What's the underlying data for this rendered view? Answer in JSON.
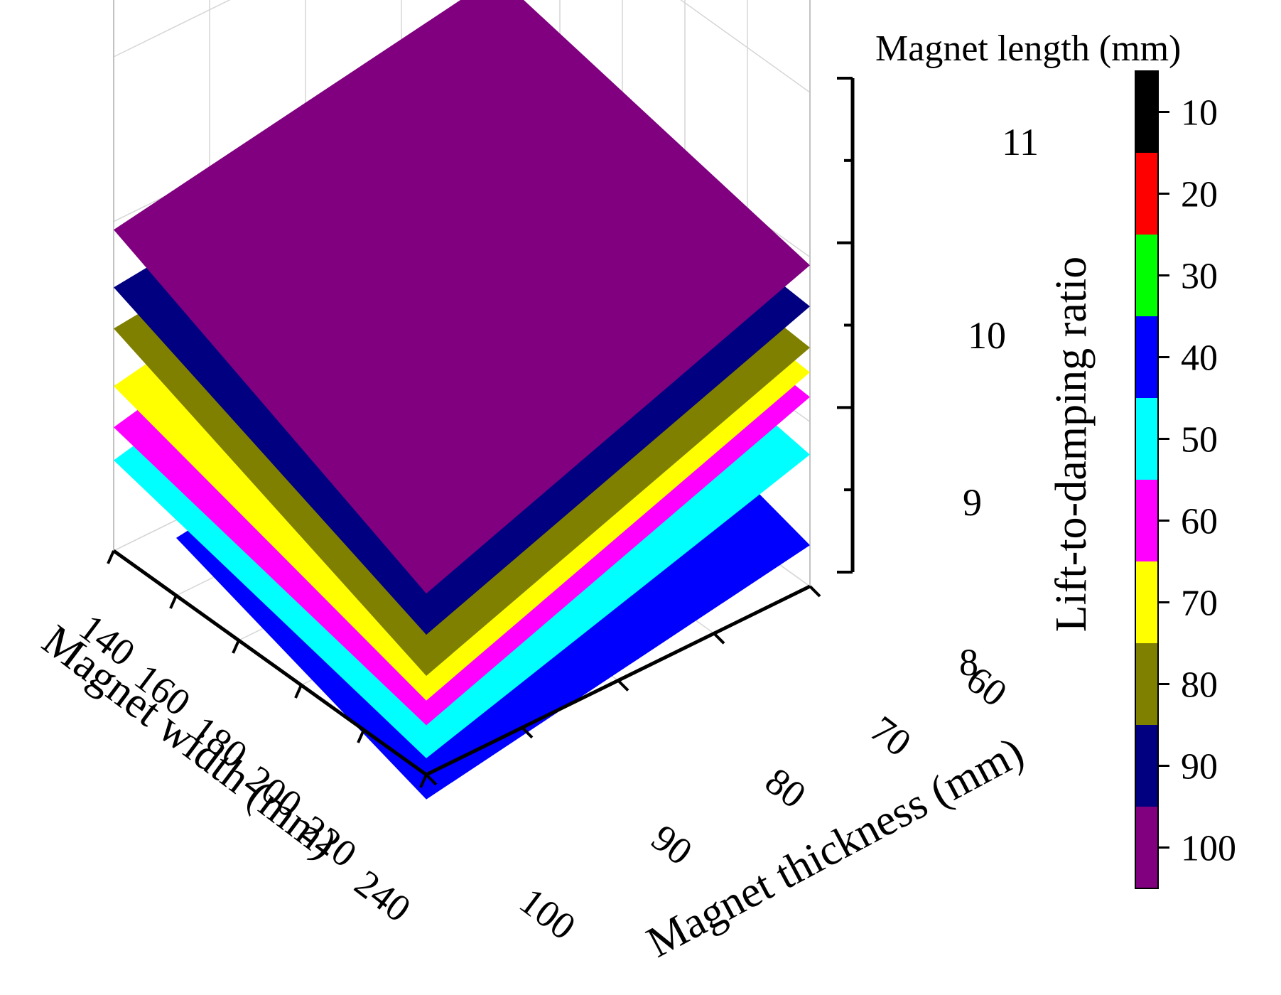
{
  "chart_data": {
    "type": "surface3d",
    "title": "",
    "x_axis": {
      "label": "Magnet width (mm)",
      "ticks": [
        "140",
        "160",
        "180",
        "200",
        "220",
        "240"
      ],
      "range": [
        140,
        240
      ]
    },
    "y_axis": {
      "label": "Magnet thickness (mm)",
      "ticks": [
        "60",
        "70",
        "80",
        "90",
        "100"
      ],
      "range": [
        60,
        100
      ]
    },
    "z_axis": {
      "label": "Lift-to-damping ratio",
      "ticks": [
        "8",
        "9",
        "10",
        "11"
      ],
      "range": [
        8,
        11
      ]
    },
    "colorbar": {
      "title": "Magnet length (mm)",
      "ticks": [
        "10",
        "20",
        "30",
        "40",
        "50",
        "60",
        "70",
        "80",
        "90",
        "100"
      ],
      "colors": [
        "#000000",
        "#ff0000",
        "#00ff00",
        "#0000ff",
        "#00ffff",
        "#ff00ff",
        "#ffff00",
        "#808000",
        "#000080",
        "#800080"
      ]
    },
    "surfaces": [
      {
        "length": 40,
        "color": "#0000ff",
        "corners": {
          "w160_t60": 8.7,
          "w240_t60": 8.25,
          "w240_t100": 7.85,
          "w160_t100": 8.35
        }
      },
      {
        "length": 50,
        "color": "#00ffff",
        "corners": {
          "w140_t60": 9.1,
          "w240_t60": 8.8,
          "w240_t100": 8.1,
          "w140_t100": 8.55
        }
      },
      {
        "length": 60,
        "color": "#ff00ff",
        "corners": {
          "w140_t60": 9.3,
          "w240_t60": 9.15,
          "w240_t100": 8.3,
          "w140_t100": 8.75
        }
      },
      {
        "length": 70,
        "color": "#ffff00",
        "corners": {
          "w140_t60": 9.45,
          "w240_t60": 9.3,
          "w240_t100": 8.45,
          "w140_t100": 9.0
        }
      },
      {
        "length": 80,
        "color": "#808000",
        "corners": {
          "w140_t60": 9.6,
          "w240_t60": 9.45,
          "w240_t100": 8.6,
          "w140_t100": 9.35
        }
      },
      {
        "length": 90,
        "color": "#000080",
        "corners": {
          "w140_t60": 9.85,
          "w240_t60": 9.7,
          "w240_t100": 8.85,
          "w140_t100": 9.6
        }
      },
      {
        "length": 100,
        "color": "#800080",
        "corners": {
          "w140_t60": 10.35,
          "w240_t60": 9.95,
          "w240_t100": 9.1,
          "w140_t100": 9.95
        }
      }
    ]
  }
}
